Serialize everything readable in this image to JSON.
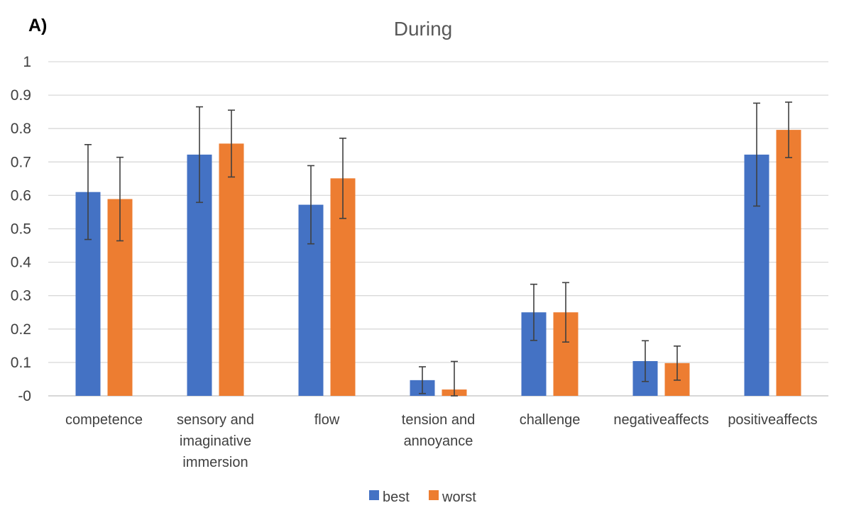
{
  "panel_label": "A)",
  "chart_data": {
    "type": "bar",
    "title": "During",
    "xlabel": "",
    "ylabel": "",
    "ylim": [
      0,
      1
    ],
    "yticks": [
      {
        "value": 0,
        "label": "-0"
      },
      {
        "value": 0.1,
        "label": "0.1"
      },
      {
        "value": 0.2,
        "label": "0.2"
      },
      {
        "value": 0.3,
        "label": "0.3"
      },
      {
        "value": 0.4,
        "label": "0.4"
      },
      {
        "value": 0.5,
        "label": "0.5"
      },
      {
        "value": 0.6,
        "label": "0.6"
      },
      {
        "value": 0.7,
        "label": "0.7"
      },
      {
        "value": 0.8,
        "label": "0.8"
      },
      {
        "value": 0.9,
        "label": "0.9"
      },
      {
        "value": 1,
        "label": "1"
      }
    ],
    "grid": true,
    "legend": "bottom",
    "categories": [
      [
        "competence"
      ],
      [
        "sensory and",
        "imaginative",
        "immersion"
      ],
      [
        "flow"
      ],
      [
        "tension and",
        "annoyance"
      ],
      [
        "challenge"
      ],
      [
        "negativeaffects"
      ],
      [
        "positiveaffects"
      ]
    ],
    "series": [
      {
        "name": "best",
        "color": "#4472C4",
        "values": [
          0.61,
          0.722,
          0.572,
          0.047,
          0.25,
          0.104,
          0.722
        ],
        "error": [
          0.142,
          0.143,
          0.117,
          0.04,
          0.084,
          0.061,
          0.154
        ]
      },
      {
        "name": "worst",
        "color": "#ED7D31",
        "values": [
          0.589,
          0.755,
          0.651,
          0.019,
          0.25,
          0.098,
          0.796
        ],
        "error": [
          0.125,
          0.1,
          0.12,
          0.084,
          0.089,
          0.051,
          0.083
        ]
      }
    ]
  }
}
